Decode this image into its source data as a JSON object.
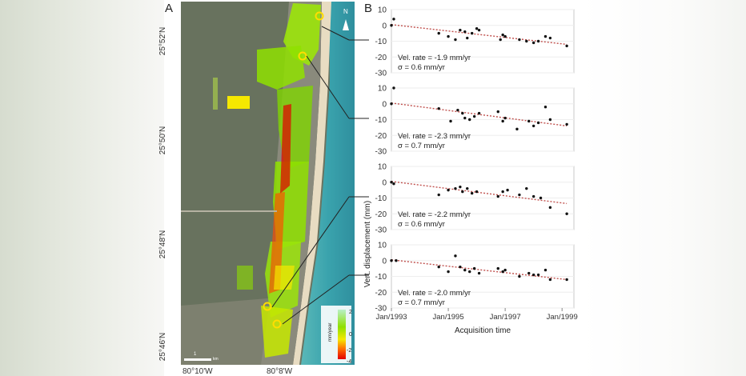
{
  "panels": {
    "a_label": "A",
    "b_label": "B"
  },
  "map": {
    "lat_labels": [
      "25°52'N",
      "25°50'N",
      "25°48'N",
      "25°46'N"
    ],
    "lon_labels": [
      "80°10'W",
      "80°8'W"
    ],
    "north_label": "N",
    "scale_label": "1",
    "scale_unit": "km",
    "legend": {
      "unit": "mm/year",
      "max": "2",
      "mid": "0",
      "low": "-2",
      "min": "-4"
    },
    "colors": {
      "high": "#b8f0c8",
      "mid": "#8fe000",
      "midlow": "#f5e800",
      "low": "#ff6a00",
      "min": "#e30000"
    }
  },
  "chart_data": [
    {
      "type": "scatter",
      "ylim": [
        -30,
        10
      ],
      "xlim": [
        "1993-01",
        "1999-06"
      ],
      "x_ticks": [],
      "y_ticks": [
        "10",
        "0",
        "-10",
        "-20",
        "-30"
      ],
      "annotation": [
        "Vel. rate = -1.9 mm/yr",
        "σ = 0.6 mm/yr"
      ],
      "trend": {
        "x": [
          "1993-01",
          "1999-03"
        ],
        "y": [
          0.5,
          -12.0
        ]
      },
      "points": [
        {
          "x": "1993-01",
          "y": 0
        },
        {
          "x": "1993-02",
          "y": 4
        },
        {
          "x": "1994-09",
          "y": -5
        },
        {
          "x": "1995-01",
          "y": -7
        },
        {
          "x": "1995-04",
          "y": -9
        },
        {
          "x": "1995-06",
          "y": -3
        },
        {
          "x": "1995-08",
          "y": -4
        },
        {
          "x": "1995-09",
          "y": -8
        },
        {
          "x": "1995-11",
          "y": -5
        },
        {
          "x": "1996-01",
          "y": -2
        },
        {
          "x": "1996-02",
          "y": -3
        },
        {
          "x": "1996-11",
          "y": -9
        },
        {
          "x": "1996-12",
          "y": -6
        },
        {
          "x": "1997-01",
          "y": -7
        },
        {
          "x": "1997-07",
          "y": -9
        },
        {
          "x": "1997-10",
          "y": -10
        },
        {
          "x": "1998-01",
          "y": -11
        },
        {
          "x": "1998-03",
          "y": -10
        },
        {
          "x": "1998-06",
          "y": -7
        },
        {
          "x": "1998-08",
          "y": -8
        },
        {
          "x": "1999-03",
          "y": -13
        }
      ],
      "series_color": "#111111",
      "trend_color": "#c0504d"
    },
    {
      "type": "scatter",
      "ylim": [
        -30,
        10
      ],
      "xlim": [
        "1993-01",
        "1999-06"
      ],
      "x_ticks": [],
      "y_ticks": [
        "10",
        "0",
        "-10",
        "-20",
        "-30"
      ],
      "annotation": [
        "Vel. rate = -2.3 mm/yr",
        "σ = 0.7 mm/yr"
      ],
      "trend": {
        "x": [
          "1993-01",
          "1999-03"
        ],
        "y": [
          0.5,
          -14.0
        ]
      },
      "points": [
        {
          "x": "1993-01",
          "y": 0
        },
        {
          "x": "1993-02",
          "y": 10
        },
        {
          "x": "1994-09",
          "y": -3
        },
        {
          "x": "1995-02",
          "y": -11
        },
        {
          "x": "1995-05",
          "y": -4
        },
        {
          "x": "1995-07",
          "y": -6
        },
        {
          "x": "1995-08",
          "y": -9
        },
        {
          "x": "1995-10",
          "y": -10
        },
        {
          "x": "1995-12",
          "y": -8
        },
        {
          "x": "1996-02",
          "y": -6
        },
        {
          "x": "1996-10",
          "y": -5
        },
        {
          "x": "1996-12",
          "y": -11
        },
        {
          "x": "1997-01",
          "y": -9
        },
        {
          "x": "1997-06",
          "y": -16
        },
        {
          "x": "1997-11",
          "y": -11
        },
        {
          "x": "1998-01",
          "y": -14
        },
        {
          "x": "1998-03",
          "y": -12
        },
        {
          "x": "1998-06",
          "y": -2
        },
        {
          "x": "1998-08",
          "y": -10
        },
        {
          "x": "1999-03",
          "y": -13
        }
      ],
      "series_color": "#111111",
      "trend_color": "#c0504d"
    },
    {
      "type": "scatter",
      "ylim": [
        -30,
        10
      ],
      "xlim": [
        "1993-01",
        "1999-06"
      ],
      "x_ticks": [],
      "y_ticks": [
        "10",
        "0",
        "-10",
        "-20",
        "-30"
      ],
      "annotation": [
        "Vel. rate = -2.2 mm/yr",
        "σ = 0.6 mm/yr"
      ],
      "trend": {
        "x": [
          "1993-01",
          "1999-03"
        ],
        "y": [
          0.5,
          -13.5
        ]
      },
      "points": [
        {
          "x": "1993-01",
          "y": 0
        },
        {
          "x": "1993-02",
          "y": -1
        },
        {
          "x": "1994-09",
          "y": -8
        },
        {
          "x": "1995-01",
          "y": -5
        },
        {
          "x": "1995-04",
          "y": -4
        },
        {
          "x": "1995-06",
          "y": -3
        },
        {
          "x": "1995-07",
          "y": -6
        },
        {
          "x": "1995-09",
          "y": -4
        },
        {
          "x": "1995-11",
          "y": -7
        },
        {
          "x": "1996-01",
          "y": -6
        },
        {
          "x": "1996-10",
          "y": -9
        },
        {
          "x": "1996-12",
          "y": -6
        },
        {
          "x": "1997-02",
          "y": -5
        },
        {
          "x": "1997-07",
          "y": -8
        },
        {
          "x": "1997-10",
          "y": -4
        },
        {
          "x": "1998-01",
          "y": -9
        },
        {
          "x": "1998-04",
          "y": -10
        },
        {
          "x": "1998-08",
          "y": -16
        },
        {
          "x": "1999-03",
          "y": -20
        }
      ],
      "series_color": "#111111",
      "trend_color": "#c0504d"
    },
    {
      "type": "scatter",
      "ylim": [
        -30,
        10
      ],
      "xlim": [
        "1993-01",
        "1999-06"
      ],
      "x_ticks": [
        "Jan/1993",
        "Jan/1995",
        "Jan/1997",
        "Jan/1999"
      ],
      "y_ticks": [
        "10",
        "0",
        "-10",
        "-20",
        "-30"
      ],
      "annotation": [
        "Vel. rate = -2.0 mm/yr",
        "σ = 0.7 mm/yr"
      ],
      "trend": {
        "x": [
          "1993-01",
          "1999-03"
        ],
        "y": [
          0.5,
          -12.0
        ]
      },
      "points": [
        {
          "x": "1993-01",
          "y": 0
        },
        {
          "x": "1993-03",
          "y": 0
        },
        {
          "x": "1994-09",
          "y": -4
        },
        {
          "x": "1995-01",
          "y": -7
        },
        {
          "x": "1995-04",
          "y": 3
        },
        {
          "x": "1995-06",
          "y": -4
        },
        {
          "x": "1995-08",
          "y": -6
        },
        {
          "x": "1995-10",
          "y": -7
        },
        {
          "x": "1995-12",
          "y": -5
        },
        {
          "x": "1996-02",
          "y": -8
        },
        {
          "x": "1996-10",
          "y": -5
        },
        {
          "x": "1996-12",
          "y": -7
        },
        {
          "x": "1997-01",
          "y": -6
        },
        {
          "x": "1997-07",
          "y": -10
        },
        {
          "x": "1997-11",
          "y": -8
        },
        {
          "x": "1998-01",
          "y": -9
        },
        {
          "x": "1998-03",
          "y": -9
        },
        {
          "x": "1998-06",
          "y": -6
        },
        {
          "x": "1998-08",
          "y": -12
        },
        {
          "x": "1999-03",
          "y": -12
        }
      ],
      "series_color": "#111111",
      "trend_color": "#c0504d"
    }
  ],
  "axes": {
    "ylabel": "Vert. displacement (mm)",
    "xlabel": "Acquisition time"
  }
}
